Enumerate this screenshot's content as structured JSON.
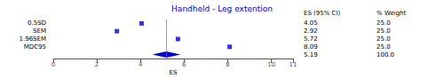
{
  "chart_data": {
    "type": "forest",
    "title": "Handheld - Leg extention",
    "xlabel": "ES",
    "xlim": [
      0,
      11
    ],
    "xticks": [
      0,
      2,
      4,
      6,
      8,
      10
    ],
    "categories": [
      "0.5SD",
      "SEM",
      "1.96SEM",
      "MDC95",
      null
    ],
    "values": [
      4.05,
      2.92,
      5.72,
      8.09,
      null
    ],
    "pooled": {
      "value": 5.19,
      "low": 4.54,
      "high": 5.84
    },
    "reference_line": 5.19,
    "columns": [
      {
        "name": "ES (95% CI)",
        "values": [
          "4.05",
          "2.92",
          "5.72",
          "8.09",
          "5.19"
        ]
      },
      {
        "name": "% Weight",
        "values": [
          "25.0",
          "25.0",
          "25.0",
          "25.0",
          "100.0"
        ]
      }
    ],
    "color": "#0000CC",
    "marker": "square",
    "grid": false
  }
}
